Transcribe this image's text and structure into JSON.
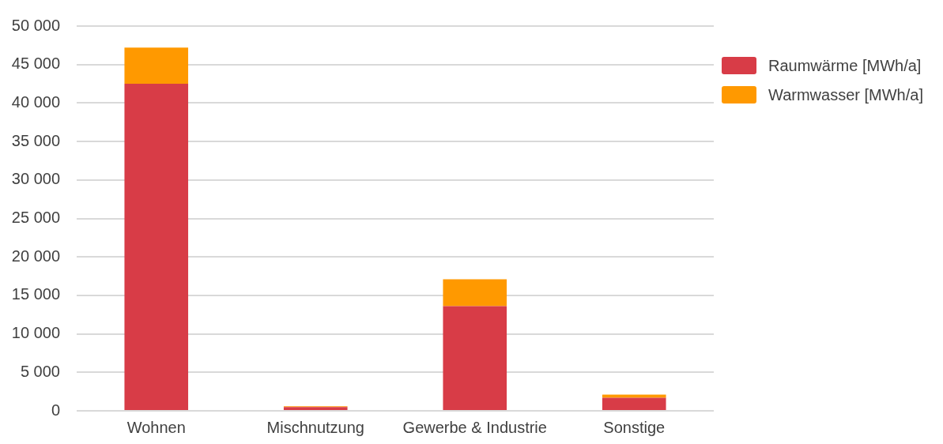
{
  "chart_data": {
    "type": "bar",
    "stacked": true,
    "categories": [
      "Wohnen",
      "Mischnutzung",
      "Gewerbe & Industrie",
      "Sonstige"
    ],
    "series": [
      {
        "name": "Raumwärme [MWh/a]",
        "color": "#d83c47",
        "values": [
          42500,
          500,
          13600,
          1700
        ]
      },
      {
        "name": "Warmwasser [MWh/a]",
        "color": "#ff9900",
        "values": [
          4700,
          100,
          3500,
          400
        ]
      }
    ],
    "ylim": [
      0,
      50000
    ],
    "yticks": [
      0,
      {
        "value": 5000,
        "label": "5 000"
      },
      {
        "value": 10000,
        "label": "10 000"
      },
      {
        "value": 15000,
        "label": "15 000"
      },
      {
        "value": 20000,
        "label": "20 000"
      },
      {
        "value": 25000,
        "label": "25 000"
      },
      {
        "value": 30000,
        "label": "30 000"
      },
      {
        "value": 35000,
        "label": "35 000"
      },
      {
        "value": 40000,
        "label": "40 000"
      },
      {
        "value": 45000,
        "label": "45 000"
      },
      {
        "value": 50000,
        "label": "50 000"
      }
    ],
    "grid": "y",
    "legend": "right"
  }
}
